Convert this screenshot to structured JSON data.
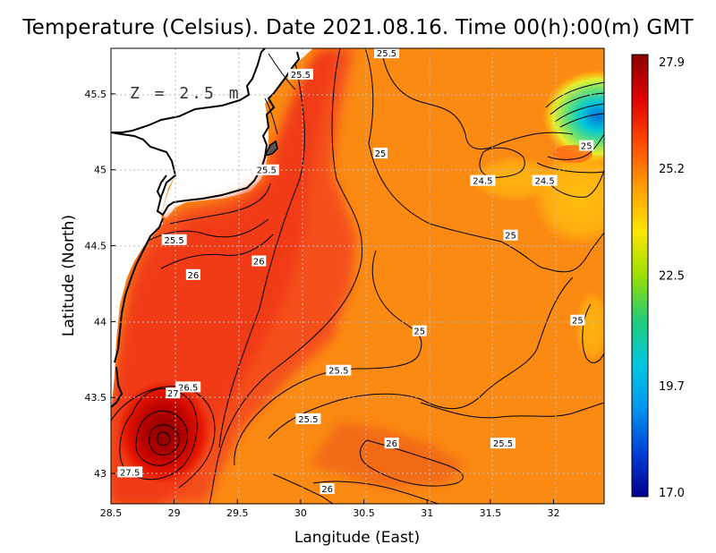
{
  "chart_data": {
    "type": "heatmap",
    "title": "Temperature (Celsius). Date 2021.08.16. Time 00(h):00(m)  GMT",
    "xlabel": "Langitude (East)",
    "ylabel": "Latitude (North)",
    "xlim": [
      28.5,
      32.4
    ],
    "ylim": [
      42.8,
      45.8
    ],
    "x_ticks": [
      28.5,
      29,
      29.5,
      30,
      30.5,
      31,
      31.5,
      32
    ],
    "x_tick_labels": [
      "28.5",
      "29",
      "29.5",
      "30",
      "30.5",
      "31",
      "31.5",
      "32"
    ],
    "y_ticks": [
      43,
      43.5,
      44,
      44.5,
      45,
      45.5
    ],
    "y_tick_labels": [
      "43",
      "43.5",
      "44",
      "44.5",
      "45",
      "45.5"
    ],
    "annotation": "Z = 2.5 m",
    "grid": true,
    "colorbar": {
      "min": 17.0,
      "max": 27.9,
      "tick_values": [
        27.9,
        25.2,
        22.5,
        19.7,
        17.0
      ],
      "tick_labels": [
        "27.9",
        "25.2",
        "22.5",
        "19.7",
        "17.0"
      ],
      "colors": [
        "#8b0000",
        "#ff2200",
        "#ff9900",
        "#ffee00",
        "#33dd66",
        "#00ccee",
        "#0066ee",
        "#000090"
      ]
    },
    "contour_labels": [
      {
        "text": "25.5",
        "lon": 30.68,
        "lat": 45.77
      },
      {
        "text": "25.5",
        "lon": 30.0,
        "lat": 45.63
      },
      {
        "text": "25",
        "lon": 30.63,
        "lat": 45.11
      },
      {
        "text": "25.5",
        "lon": 29.73,
        "lat": 45.0
      },
      {
        "text": "25",
        "lon": 32.26,
        "lat": 45.16
      },
      {
        "text": "24.5",
        "lon": 31.44,
        "lat": 44.93
      },
      {
        "text": "24.5",
        "lon": 31.93,
        "lat": 44.93
      },
      {
        "text": "25",
        "lon": 31.66,
        "lat": 44.57
      },
      {
        "text": "25.5",
        "lon": 29.0,
        "lat": 44.54
      },
      {
        "text": "26",
        "lon": 29.67,
        "lat": 44.4
      },
      {
        "text": "26",
        "lon": 29.15,
        "lat": 44.31
      },
      {
        "text": "25",
        "lon": 32.19,
        "lat": 44.01
      },
      {
        "text": "25",
        "lon": 30.94,
        "lat": 43.94
      },
      {
        "text": "25.5",
        "lon": 30.3,
        "lat": 43.68
      },
      {
        "text": "26.5",
        "lon": 29.11,
        "lat": 43.57
      },
      {
        "text": "27",
        "lon": 28.99,
        "lat": 43.53
      },
      {
        "text": "25.5",
        "lon": 30.06,
        "lat": 43.36
      },
      {
        "text": "26",
        "lon": 30.72,
        "lat": 43.2
      },
      {
        "text": "25.5",
        "lon": 31.6,
        "lat": 43.2
      },
      {
        "text": "27.5",
        "lon": 28.65,
        "lat": 43.01
      },
      {
        "text": "26",
        "lon": 30.21,
        "lat": 42.9
      }
    ]
  }
}
